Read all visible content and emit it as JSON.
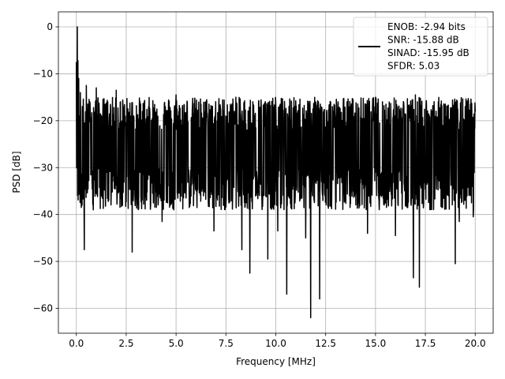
{
  "chart_data": {
    "type": "line",
    "xlabel": "Frequency [MHz]",
    "ylabel": "PSD [dB]",
    "xlim": [
      -0.9,
      20.9
    ],
    "ylim": [
      -65.3,
      3.2
    ],
    "x_ticks": [
      0.0,
      2.5,
      5.0,
      7.5,
      10.0,
      12.5,
      15.0,
      17.5,
      20.0
    ],
    "x_tick_labels": [
      "0.0",
      "2.5",
      "5.0",
      "7.5",
      "10.0",
      "12.5",
      "15.0",
      "17.5",
      "20.0"
    ],
    "y_ticks": [
      0,
      -10,
      -20,
      -30,
      -40,
      -50,
      -60
    ],
    "y_tick_labels": [
      "0",
      "−10",
      "−20",
      "−30",
      "−40",
      "−50",
      "−60"
    ],
    "grid": true,
    "legend_position": "top-right",
    "series": [
      {
        "name": "ENOB: -2.94 bits\nSNR: -15.88 dB\nSINAD: -15.95 dB\nSFDR: 5.03",
        "legend_lines": [
          "ENOB: -2.94 bits",
          "SNR: -15.88 dB",
          "SINAD: -15.95 dB",
          "SFDR: 5.03"
        ],
        "color": "#000000",
        "x_range": [
          0,
          20
        ],
        "peaks": [
          {
            "x": 0.0,
            "y": -7.5
          },
          {
            "x": 0.02,
            "y": -10.5
          },
          {
            "x": 0.05,
            "y": 0.0
          },
          {
            "x": 0.08,
            "y": -7.2
          },
          {
            "x": 0.12,
            "y": -11.0
          },
          {
            "x": 0.2,
            "y": -14.0
          },
          {
            "x": 0.3,
            "y": -17.0
          },
          {
            "x": 0.5,
            "y": -12.5
          },
          {
            "x": 1.0,
            "y": -13.0
          },
          {
            "x": 2.0,
            "y": -13.5
          },
          {
            "x": 5.0,
            "y": -14.5
          },
          {
            "x": 8.0,
            "y": -15.0
          },
          {
            "x": 10.0,
            "y": -16.5
          },
          {
            "x": 12.0,
            "y": -16.0
          },
          {
            "x": 15.0,
            "y": -15.0
          },
          {
            "x": 17.0,
            "y": -14.5
          },
          {
            "x": 19.0,
            "y": -13.0
          },
          {
            "x": 20.0,
            "y": -18.0
          }
        ],
        "troughs": [
          {
            "x": 0.25,
            "y": -38.5
          },
          {
            "x": 0.4,
            "y": -47.5
          },
          {
            "x": 0.85,
            "y": -39.0
          },
          {
            "x": 2.8,
            "y": -48.0
          },
          {
            "x": 4.3,
            "y": -41.5
          },
          {
            "x": 6.9,
            "y": -43.5
          },
          {
            "x": 8.3,
            "y": -47.5
          },
          {
            "x": 8.7,
            "y": -52.5
          },
          {
            "x": 9.6,
            "y": -49.5
          },
          {
            "x": 10.1,
            "y": -43.5
          },
          {
            "x": 10.55,
            "y": -57.0
          },
          {
            "x": 11.5,
            "y": -45.0
          },
          {
            "x": 11.75,
            "y": -62.0
          },
          {
            "x": 12.2,
            "y": -58.0
          },
          {
            "x": 14.6,
            "y": -44.0
          },
          {
            "x": 16.0,
            "y": -44.5
          },
          {
            "x": 16.9,
            "y": -53.5
          },
          {
            "x": 17.2,
            "y": -55.5
          },
          {
            "x": 19.0,
            "y": -50.5
          },
          {
            "x": 19.2,
            "y": -41.5
          },
          {
            "x": 19.9,
            "y": -40.5
          }
        ],
        "noise_upper_db": -20,
        "noise_lower_db": -35
      }
    ]
  }
}
